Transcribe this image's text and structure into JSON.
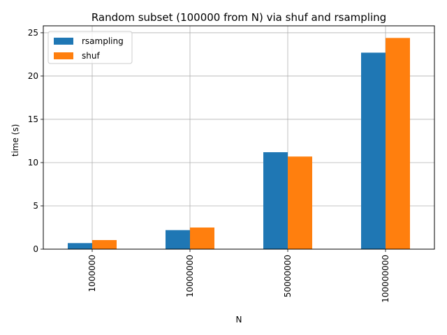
{
  "chart_data": {
    "type": "bar",
    "title": "Random subset (100000 from N) via shuf and rsampling",
    "xlabel": "N",
    "ylabel": "time (s)",
    "categories": [
      "1000000",
      "10000000",
      "50000000",
      "100000000"
    ],
    "series": [
      {
        "name": "rsampling",
        "color": "#1f77b4",
        "values": [
          0.7,
          2.2,
          11.2,
          22.7
        ]
      },
      {
        "name": "shuf",
        "color": "#ff7f0e",
        "values": [
          1.05,
          2.5,
          10.7,
          24.4
        ]
      }
    ],
    "ylim": [
      0,
      25.8
    ],
    "yticks": [
      0,
      5,
      10,
      15,
      20,
      25
    ],
    "grid": true,
    "legend_position": "top-left",
    "x_tick_rotation": "vertical"
  }
}
